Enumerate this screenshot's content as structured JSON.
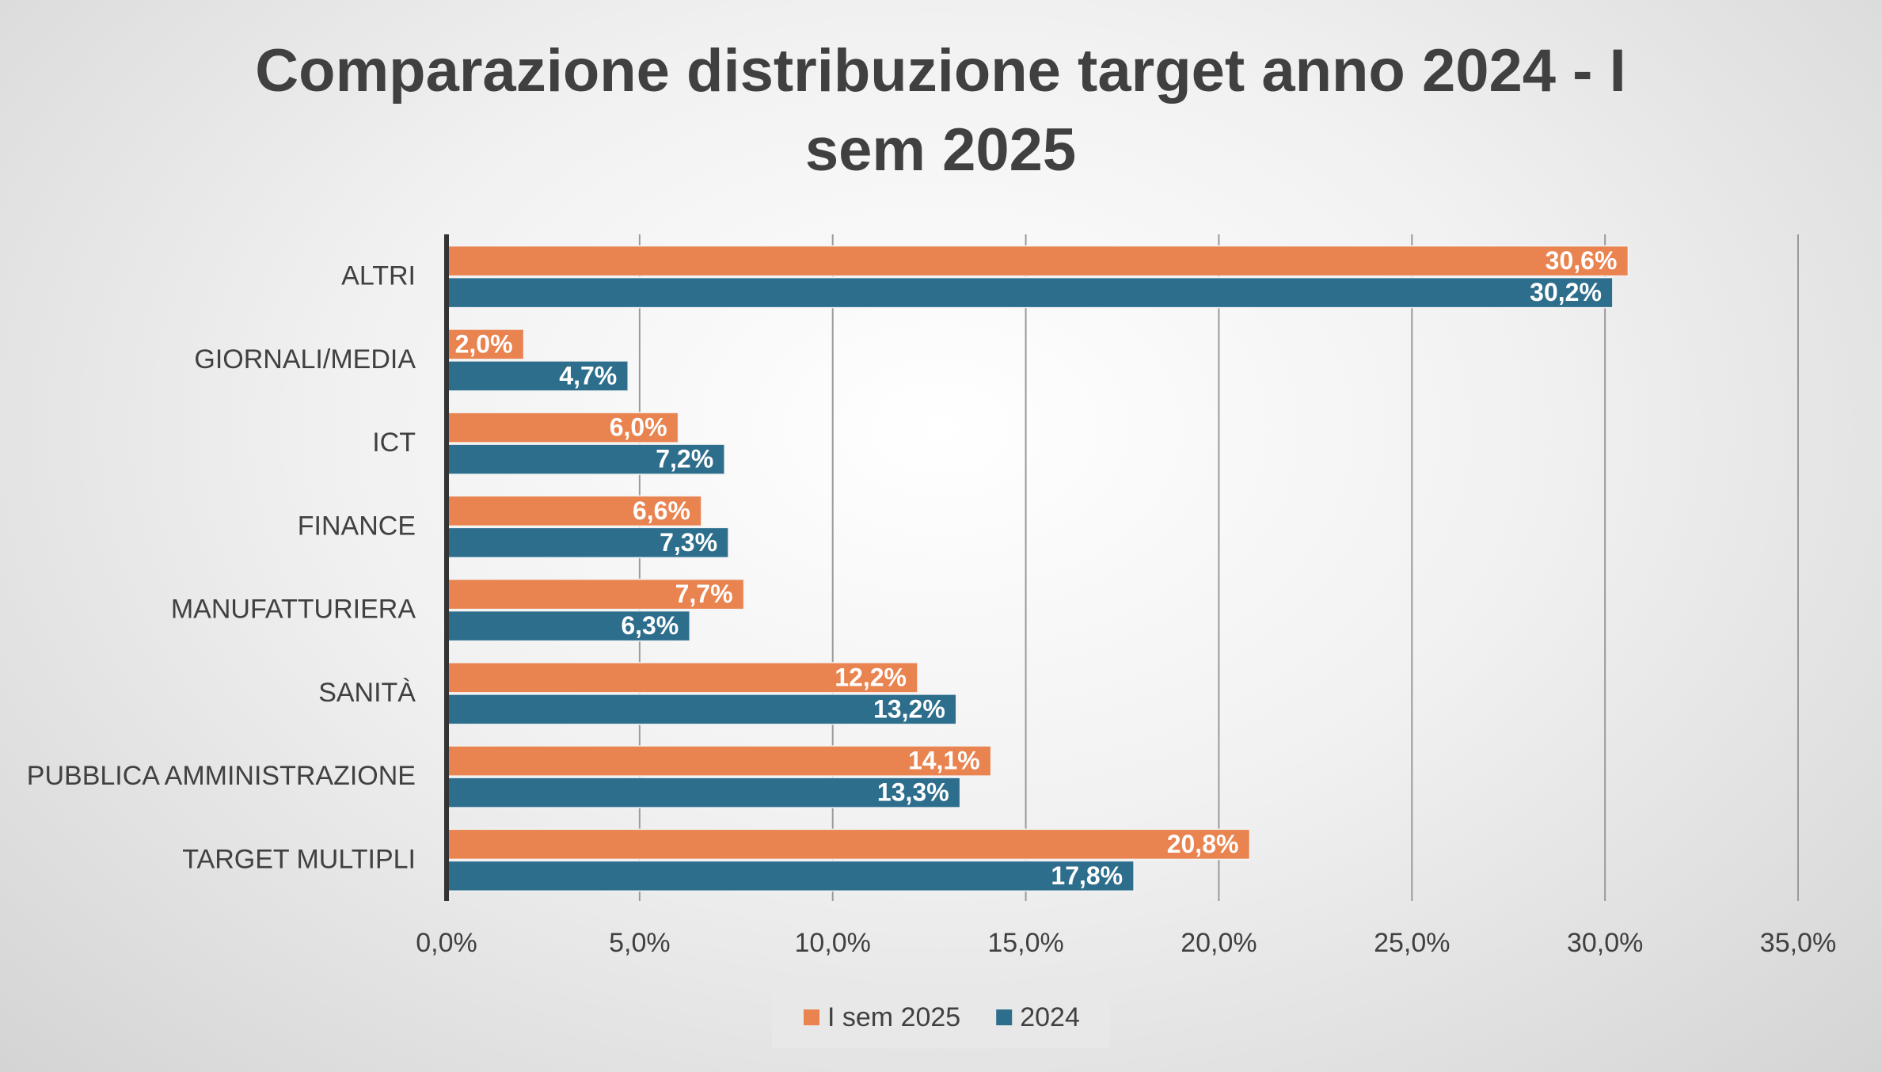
{
  "chart_data": {
    "type": "bar",
    "orientation": "horizontal",
    "title": "Comparazione distribuzione target anno 2024 - I sem 2025",
    "categories": [
      "ALTRI",
      "GIORNALI/MEDIA",
      "ICT",
      "FINANCE",
      "MANUFATTURIERA",
      "SANITÀ",
      "PUBBLICA AMMINISTRAZIONE",
      "TARGET MULTIPLI"
    ],
    "series": [
      {
        "name": "I sem 2025",
        "color": "#e9834f",
        "values": [
          30.6,
          2.0,
          6.0,
          6.6,
          7.7,
          12.2,
          14.1,
          20.8
        ],
        "value_labels": [
          "30,6%",
          "2,0%",
          "6,0%",
          "6,6%",
          "7,7%",
          "12,2%",
          "14,1%",
          "20,8%"
        ]
      },
      {
        "name": "2024",
        "color": "#2e6e8d",
        "values": [
          30.2,
          4.7,
          7.2,
          7.3,
          6.3,
          13.2,
          13.3,
          17.8
        ],
        "value_labels": [
          "30,2%",
          "4,7%",
          "7,2%",
          "7,3%",
          "6,3%",
          "13,2%",
          "13,3%",
          "17,8%"
        ]
      }
    ],
    "xlim": [
      0,
      35
    ],
    "xticks": [
      {
        "value": 0,
        "label": "0,0%"
      },
      {
        "value": 5,
        "label": "5,0%"
      },
      {
        "value": 10,
        "label": "10,0%"
      },
      {
        "value": 15,
        "label": "15,0%"
      },
      {
        "value": 20,
        "label": "20,0%"
      },
      {
        "value": 25,
        "label": "25,0%"
      },
      {
        "value": 30,
        "label": "30,0%"
      },
      {
        "value": 35,
        "label": "35,0%"
      }
    ],
    "grid": true,
    "legend": "bottom"
  }
}
